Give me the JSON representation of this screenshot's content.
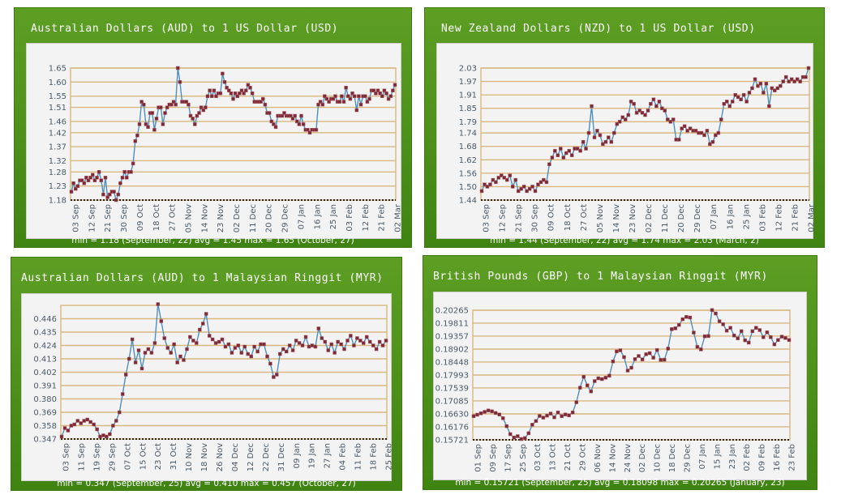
{
  "colors": {
    "panel": "#4b8f19",
    "grid": "#d9b880",
    "line": "#4f8fc0",
    "marker": "#7a2a35",
    "axis": "#222222"
  },
  "chart_data": [
    {
      "type": "line",
      "title": "Australian Dollars (AUD) to 1 US Dollar (USD)",
      "stats": "min = 1.18 (September, 22) avg = 1.45 max = 1.65 (October, 27)",
      "yticks": [
        "1.18",
        "1.23",
        "1.28",
        "1.32",
        "1.37",
        "1.42",
        "1.46",
        "1.51",
        "1.55",
        "1.60",
        "1.65"
      ],
      "ylim": [
        1.18,
        1.65
      ],
      "xticks": [
        "03 Sep",
        "12 Sep",
        "21 Sep",
        "30 Sep",
        "09 Oct",
        "18 Oct",
        "27 Oct",
        "05 Nov",
        "14 Nov",
        "23 Nov",
        "02 Dec",
        "11 Dec",
        "20 Dec",
        "29 Dec",
        "07 Jan",
        "16 Jan",
        "25 Jan",
        "03 Feb",
        "12 Feb",
        "21 Feb",
        "02 Mar"
      ],
      "values": [
        1.21,
        1.24,
        1.22,
        1.23,
        1.25,
        1.25,
        1.24,
        1.26,
        1.25,
        1.26,
        1.27,
        1.25,
        1.26,
        1.28,
        1.25,
        1.2,
        1.26,
        1.19,
        1.2,
        1.21,
        1.21,
        1.18,
        1.2,
        1.24,
        1.26,
        1.28,
        1.26,
        1.28,
        1.28,
        1.31,
        1.39,
        1.41,
        1.45,
        1.53,
        1.52,
        1.45,
        1.44,
        1.49,
        1.49,
        1.43,
        1.47,
        1.51,
        1.51,
        1.45,
        1.49,
        1.51,
        1.52,
        1.52,
        1.53,
        1.52,
        1.65,
        1.6,
        1.53,
        1.53,
        1.53,
        1.52,
        1.48,
        1.47,
        1.45,
        1.48,
        1.49,
        1.51,
        1.5,
        1.51,
        1.55,
        1.57,
        1.55,
        1.57,
        1.55,
        1.56,
        1.56,
        1.63,
        1.6,
        1.58,
        1.57,
        1.56,
        1.54,
        1.56,
        1.55,
        1.56,
        1.57,
        1.56,
        1.57,
        1.59,
        1.58,
        1.56,
        1.53,
        1.53,
        1.53,
        1.53,
        1.54,
        1.52,
        1.49,
        1.49,
        1.46,
        1.45,
        1.44,
        1.48,
        1.48,
        1.48,
        1.49,
        1.48,
        1.48,
        1.48,
        1.47,
        1.48,
        1.46,
        1.45,
        1.48,
        1.45,
        1.43,
        1.43,
        1.42,
        1.43,
        1.43,
        1.43,
        1.52,
        1.53,
        1.52,
        1.55,
        1.54,
        1.53,
        1.54,
        1.54,
        1.55,
        1.53,
        1.53,
        1.55,
        1.53,
        1.58,
        1.55,
        1.54,
        1.56,
        1.55,
        1.5,
        1.55,
        1.52,
        1.55,
        1.55,
        1.53,
        1.54,
        1.57,
        1.57,
        1.56,
        1.57,
        1.56,
        1.55,
        1.57,
        1.56,
        1.54,
        1.55,
        1.57,
        1.59
      ]
    },
    {
      "type": "line",
      "title": "New Zealand Dollars (NZD) to 1 US Dollar (USD)",
      "stats": "min = 1.44 (September, 22) avg = 1.74 max = 2.03 (March, 2)",
      "yticks": [
        "1.44",
        "1.50",
        "1.56",
        "1.62",
        "1.68",
        "1.74",
        "1.79",
        "1.85",
        "1.91",
        "1.97",
        "2.03"
      ],
      "ylim": [
        1.44,
        2.03
      ],
      "xticks": [
        "03 Sep",
        "12 Sep",
        "21 Sep",
        "30 Sep",
        "09 Oct",
        "18 Oct",
        "27 Oct",
        "05 Nov",
        "14 Nov",
        "23 Nov",
        "02 Dec",
        "11 Dec",
        "20 Dec",
        "29 Dec",
        "07 Jan",
        "16 Jan",
        "25 Jan",
        "03 Feb",
        "12 Feb",
        "21 Feb",
        "02 Mar"
      ],
      "values": [
        1.48,
        1.51,
        1.5,
        1.51,
        1.53,
        1.52,
        1.54,
        1.55,
        1.54,
        1.53,
        1.55,
        1.5,
        1.53,
        1.48,
        1.49,
        1.5,
        1.48,
        1.49,
        1.5,
        1.48,
        1.51,
        1.52,
        1.53,
        1.52,
        1.6,
        1.63,
        1.66,
        1.64,
        1.67,
        1.63,
        1.65,
        1.66,
        1.64,
        1.67,
        1.67,
        1.66,
        1.7,
        1.67,
        1.74,
        1.86,
        1.72,
        1.75,
        1.73,
        1.69,
        1.7,
        1.72,
        1.7,
        1.74,
        1.78,
        1.79,
        1.81,
        1.8,
        1.82,
        1.88,
        1.87,
        1.83,
        1.84,
        1.83,
        1.82,
        1.84,
        1.87,
        1.89,
        1.86,
        1.88,
        1.85,
        1.84,
        1.8,
        1.79,
        1.8,
        1.71,
        1.71,
        1.76,
        1.77,
        1.75,
        1.76,
        1.75,
        1.75,
        1.74,
        1.74,
        1.73,
        1.75,
        1.69,
        1.7,
        1.73,
        1.74,
        1.8,
        1.87,
        1.88,
        1.86,
        1.88,
        1.91,
        1.9,
        1.89,
        1.91,
        1.88,
        1.92,
        1.94,
        1.98,
        1.95,
        1.96,
        1.92,
        1.96,
        1.86,
        1.94,
        1.93,
        1.94,
        1.95,
        1.97,
        1.99,
        1.97,
        1.98,
        1.97,
        1.98,
        1.97,
        1.99,
        1.99,
        2.03
      ]
    },
    {
      "type": "line",
      "title": "Australian Dollars (AUD) to 1 Malaysian Ringgit (MYR)",
      "stats": "min = 0.347 (September, 25) avg = 0.410 max = 0.457 (October, 27)",
      "yticks": [
        "0.347",
        "0.358",
        "0.369",
        "0.380",
        "0.391",
        "0.402",
        "0.413",
        "0.424",
        "0.435",
        "0.446"
      ],
      "ylim": [
        0.347,
        0.457
      ],
      "xticks": [
        "03 Sep",
        "11 Sep",
        "19 Sep",
        "29 Sep",
        "07 Oct",
        "15 Oct",
        "23 Oct",
        "31 Oct",
        "10 Nov",
        "18 Nov",
        "26 Nov",
        "04 Dec",
        "12 Dec",
        "22 Dec",
        "31 Dec",
        "09 Jan",
        "19 Jan",
        "27 Jan",
        "04 Feb",
        "11 Feb",
        "18 Feb",
        "25 Feb"
      ],
      "values": [
        0.349,
        0.356,
        0.354,
        0.358,
        0.359,
        0.362,
        0.36,
        0.362,
        0.363,
        0.361,
        0.359,
        0.355,
        0.349,
        0.35,
        0.349,
        0.351,
        0.358,
        0.362,
        0.369,
        0.384,
        0.4,
        0.413,
        0.429,
        0.41,
        0.42,
        0.405,
        0.418,
        0.421,
        0.418,
        0.426,
        0.458,
        0.444,
        0.43,
        0.422,
        0.418,
        0.425,
        0.41,
        0.415,
        0.412,
        0.421,
        0.431,
        0.428,
        0.426,
        0.437,
        0.442,
        0.45,
        0.432,
        0.429,
        0.426,
        0.427,
        0.429,
        0.423,
        0.425,
        0.418,
        0.422,
        0.424,
        0.418,
        0.423,
        0.417,
        0.415,
        0.423,
        0.419,
        0.425,
        0.425,
        0.415,
        0.409,
        0.398,
        0.4,
        0.417,
        0.421,
        0.419,
        0.424,
        0.42,
        0.428,
        0.426,
        0.424,
        0.431,
        0.423,
        0.424,
        0.423,
        0.438,
        0.43,
        0.427,
        0.42,
        0.425,
        0.418,
        0.427,
        0.425,
        0.421,
        0.428,
        0.432,
        0.424,
        0.43,
        0.428,
        0.426,
        0.431,
        0.427,
        0.424,
        0.421,
        0.427,
        0.424,
        0.428
      ]
    },
    {
      "type": "line",
      "title": "British Pounds (GBP) to 1 Malaysian Ringgit (MYR)",
      "stats": "min = 0.15721 (September, 25) avg = 0.18098 max = 0.20265 (January, 23)",
      "yticks": [
        "0.15721",
        "0.16176",
        "0.16630",
        "0.17085",
        "0.17539",
        "0.17993",
        "0.18448",
        "0.18902",
        "0.19357",
        "0.19811",
        "0.20265"
      ],
      "ylim": [
        0.15721,
        0.20265
      ],
      "xticks": [
        "01 Sep",
        "09 Sep",
        "17 Sep",
        "25 Sep",
        "03 Oct",
        "13 Oct",
        "21 Oct",
        "29 Oct",
        "06 Nov",
        "14 Nov",
        "24 Nov",
        "02 Dec",
        "10 Dec",
        "18 Dec",
        "29 Dec",
        "07 Jan",
        "15 Jan",
        "23 Jan",
        "02 Feb",
        "09 Feb",
        "16 Feb",
        "23 Feb"
      ],
      "values": [
        0.1655,
        0.166,
        0.1665,
        0.167,
        0.1675,
        0.1672,
        0.1666,
        0.1661,
        0.1648,
        0.162,
        0.1592,
        0.158,
        0.1585,
        0.1575,
        0.1578,
        0.1595,
        0.1625,
        0.1638,
        0.1656,
        0.165,
        0.1657,
        0.1664,
        0.1651,
        0.1668,
        0.1655,
        0.1661,
        0.1658,
        0.1668,
        0.1704,
        0.1755,
        0.1793,
        0.1763,
        0.1742,
        0.1778,
        0.1788,
        0.1785,
        0.179,
        0.1797,
        0.1847,
        0.1882,
        0.1886,
        0.1862,
        0.1815,
        0.1825,
        0.1855,
        0.1866,
        0.1854,
        0.1872,
        0.1876,
        0.186,
        0.1887,
        0.1852,
        0.1853,
        0.1892,
        0.196,
        0.1963,
        0.1975,
        0.1995,
        0.2003,
        0.2001,
        0.1948,
        0.1898,
        0.1889,
        0.1935,
        0.1936,
        0.2027,
        0.2015,
        0.1988,
        0.1977,
        0.1955,
        0.1965,
        0.1938,
        0.1928,
        0.1953,
        0.1921,
        0.1913,
        0.1953,
        0.1965,
        0.1957,
        0.1932,
        0.1949,
        0.1932,
        0.1907,
        0.1922,
        0.1934,
        0.1929,
        0.1922
      ]
    }
  ]
}
